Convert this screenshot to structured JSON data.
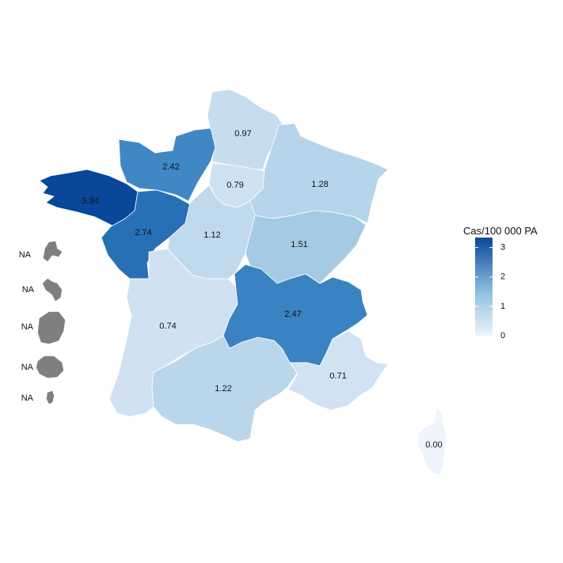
{
  "map": {
    "regions": [
      {
        "name": "nord",
        "value": 0.97,
        "label": "0.97"
      },
      {
        "name": "normandie",
        "value": 2.42,
        "label": "2.42"
      },
      {
        "name": "bretagne",
        "value": 3.34,
        "label": "3.34"
      },
      {
        "name": "pays-de-la-loire",
        "value": 2.74,
        "label": "2.74"
      },
      {
        "name": "ile-de-france",
        "value": 0.79,
        "label": "0.79"
      },
      {
        "name": "grand-est",
        "value": 1.28,
        "label": "1.28"
      },
      {
        "name": "centre",
        "value": 1.12,
        "label": "1.12"
      },
      {
        "name": "bourgogne",
        "value": 1.51,
        "label": "1.51"
      },
      {
        "name": "nouvelle-aquitaine",
        "value": 0.74,
        "label": "0.74"
      },
      {
        "name": "auvergne-rhone-alpes",
        "value": 2.47,
        "label": "2.47"
      },
      {
        "name": "occitanie",
        "value": 1.22,
        "label": "1.22"
      },
      {
        "name": "paca",
        "value": 0.71,
        "label": "0.71"
      },
      {
        "name": "corse",
        "value": 0.0,
        "label": "0.00"
      }
    ],
    "overseas": [
      {
        "name": "guadeloupe",
        "label": "NA"
      },
      {
        "name": "martinique",
        "label": "NA"
      },
      {
        "name": "guyane",
        "label": "NA"
      },
      {
        "name": "reunion",
        "label": "NA"
      },
      {
        "name": "mayotte",
        "label": "NA"
      }
    ],
    "na_color": "#7f7f7f"
  },
  "legend": {
    "title": "Cas/100 000 PA",
    "ticks": [
      "0",
      "1",
      "2",
      "3"
    ],
    "tick_values": [
      0,
      1,
      2,
      3
    ],
    "range": [
      0,
      3.34
    ],
    "color_low": "#eef3fc",
    "color_high": "#08479a",
    "placement": "right"
  }
}
